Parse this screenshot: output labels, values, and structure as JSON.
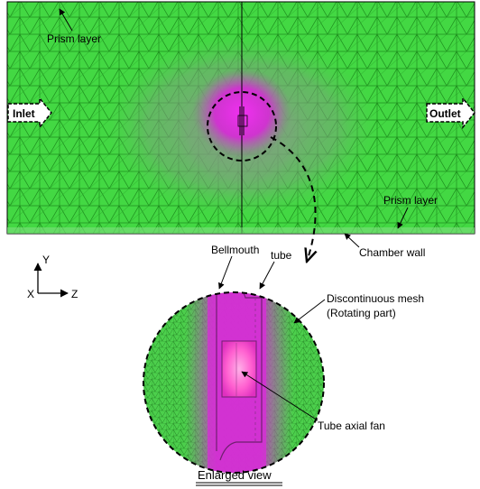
{
  "labels": {
    "prism_layer_top": "Prism layer",
    "inlet": "Inlet",
    "outlet": "Outlet",
    "prism_layer_bottom": "Prism layer",
    "chamber_wall": "Chamber wall",
    "axis_y": "Y",
    "axis_x": "X",
    "axis_z": "Z",
    "bellmouth": "Bellmouth",
    "tube": "tube",
    "discontinuous_mesh": "Discontinuous mesh",
    "rotating_part": "(Rotating part)",
    "tube_axial_fan": "Tube axial fan",
    "enlarged_view": "Enlarged view"
  },
  "colors": {
    "mesh_green": "#3fd83f",
    "mesh_line": "#1f8a1f",
    "refine_magenta": "#e020e0",
    "fan_pink": "#ff6fd0"
  }
}
